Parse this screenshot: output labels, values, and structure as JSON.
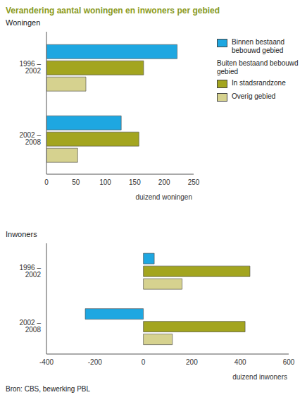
{
  "title": "Verandering aantal woningen en inwoners per gebied",
  "source": "Bron: CBS, bewerking PBL",
  "legend_heading": "Buiten bestaand bebouwd gebied",
  "chart_data": [
    {
      "type": "bar",
      "orientation": "horizontal",
      "title": "Woningen",
      "x_label": "duizend woningen",
      "categories": [
        "1996 – 2002",
        "2002 – 2008"
      ],
      "series": [
        {
          "name": "Binnen bestaand bebouwd gebied",
          "color": "#1ea7e1",
          "values": [
            222,
            127
          ]
        },
        {
          "name": "In stadsrandzone",
          "color": "#a3a51f",
          "values": [
            165,
            157
          ]
        },
        {
          "name": "Overig gebied",
          "color": "#d6d28f",
          "values": [
            67,
            53
          ]
        }
      ],
      "xlim": [
        0,
        250
      ],
      "xticks": [
        0,
        50,
        100,
        150,
        200,
        250
      ],
      "grid": false
    },
    {
      "type": "bar",
      "orientation": "horizontal",
      "title": "Inwoners",
      "x_label": "duizend inwoners",
      "categories": [
        "1996 – 2002",
        "2002 – 2008"
      ],
      "series": [
        {
          "name": "Binnen bestaand bebouwd gebied",
          "color": "#1ea7e1",
          "values": [
            45,
            -240
          ]
        },
        {
          "name": "In stadsrandzone",
          "color": "#a3a51f",
          "values": [
            440,
            420
          ]
        },
        {
          "name": "Overig gebied",
          "color": "#d6d28f",
          "values": [
            160,
            120
          ]
        }
      ],
      "xlim": [
        -400,
        600
      ],
      "xticks": [
        -400,
        -200,
        0,
        200,
        400,
        600
      ],
      "grid": false
    }
  ]
}
